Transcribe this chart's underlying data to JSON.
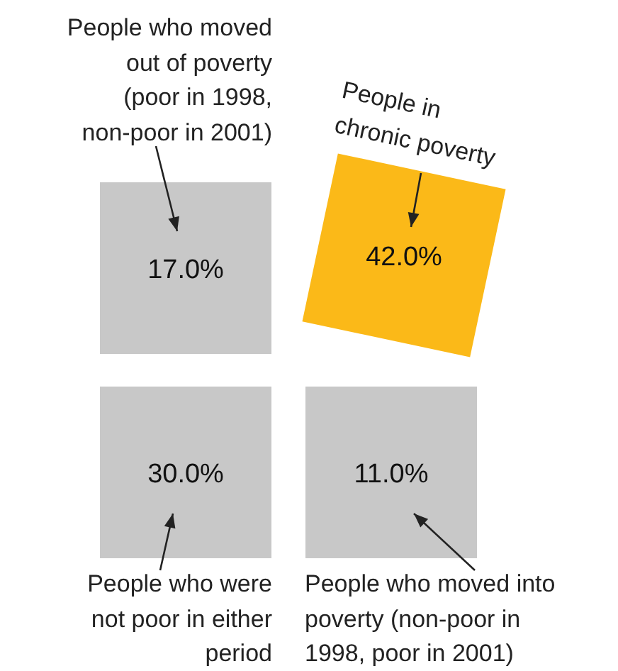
{
  "chart_data": {
    "type": "other",
    "categories": [
      "People who moved\nout of poverty\n(poor in 1998,\nnon-poor in 2001)",
      "People in\nchronic poverty",
      "People who were\nnot poor in either\nperiod",
      "People who moved into\npoverty (non-poor in\n1998, poor in 2001)"
    ],
    "values": [
      17,
      42,
      30,
      11
    ],
    "value_labels": [
      "17.0%",
      "42.0%",
      "30.0%",
      "11.0%"
    ],
    "colors": [
      "#c8c8c8",
      "#fbb918",
      "#c8c8c8",
      "#c8c8c8"
    ]
  }
}
